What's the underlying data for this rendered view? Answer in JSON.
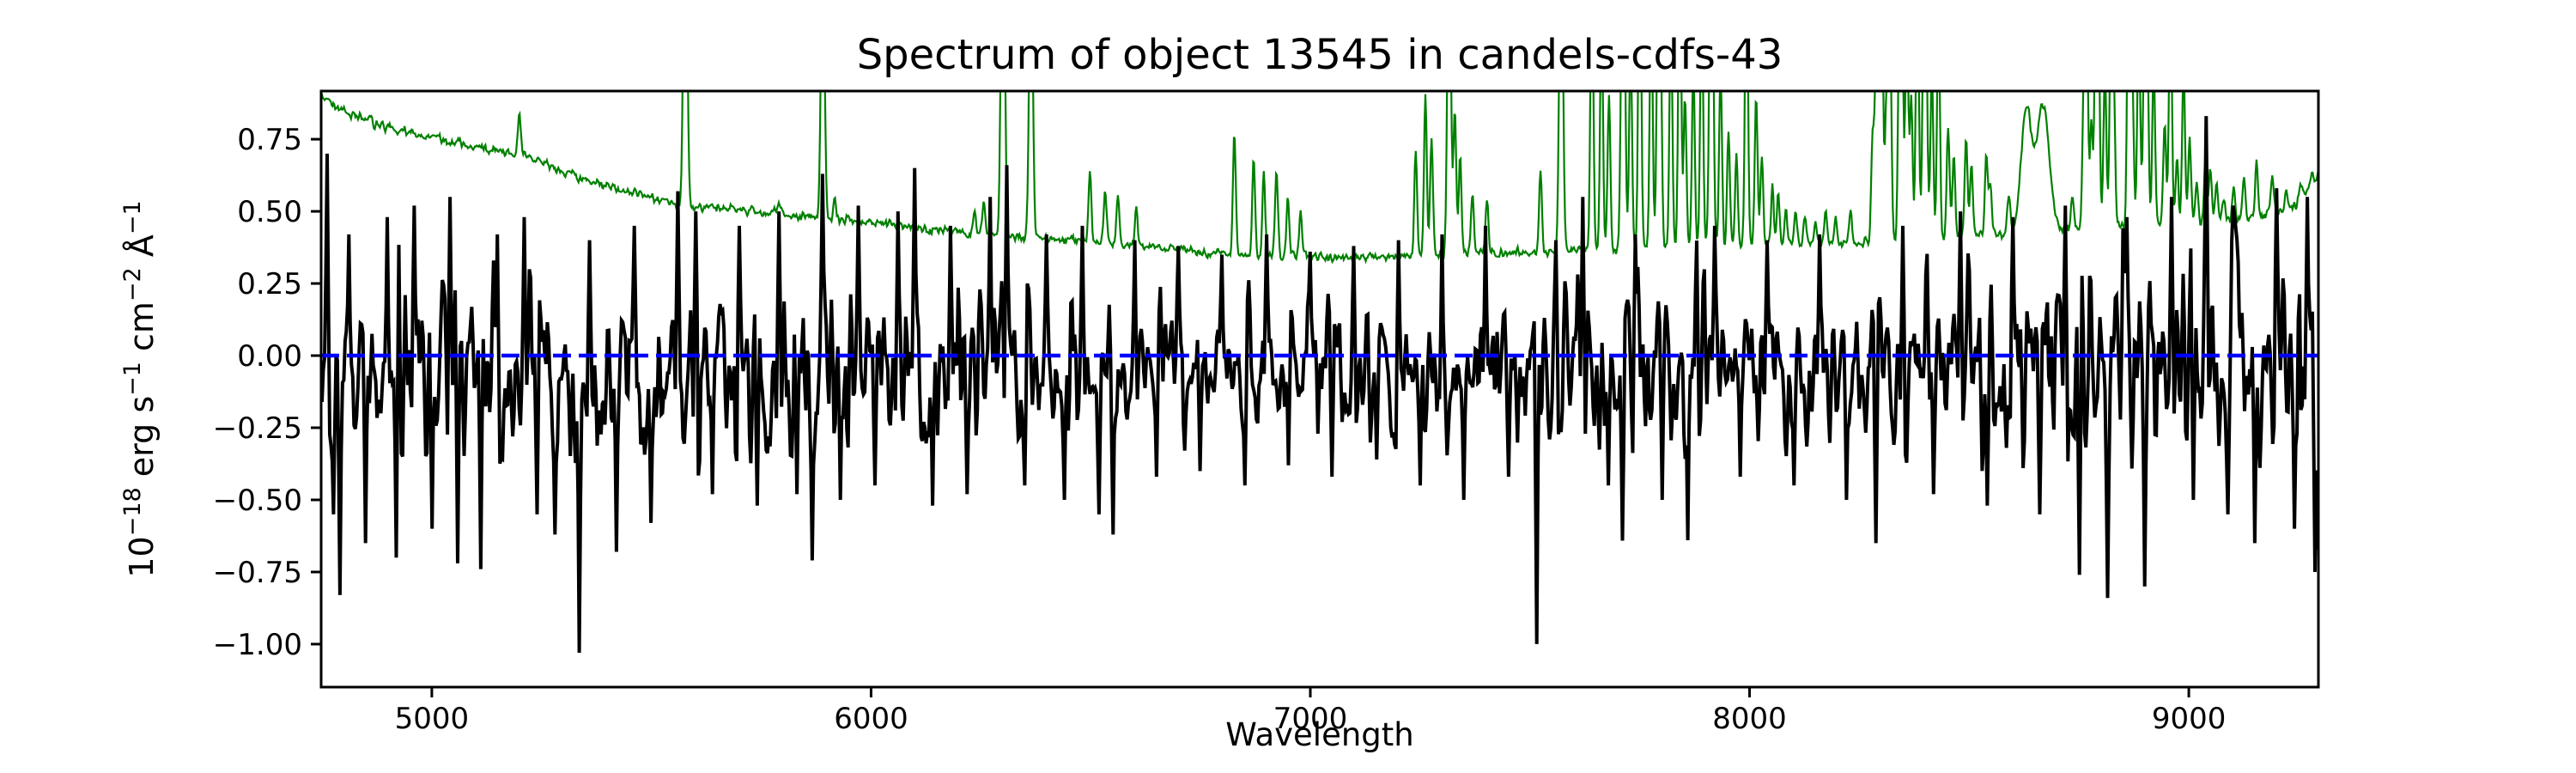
{
  "figure": {
    "background": "#ffffff",
    "title": "Spectrum of object 13545 in candels-cdfs-43",
    "xlabel": "Wavelength",
    "ylabel_parts": [
      {
        "t": "10"
      },
      {
        "t": "−18",
        "sup": true
      },
      {
        "t": " erg s"
      },
      {
        "t": "−1",
        "sup": true
      },
      {
        "t": " cm"
      },
      {
        "t": "−2",
        "sup": true
      },
      {
        "t": " Å"
      },
      {
        "t": "−1",
        "sup": true
      }
    ]
  },
  "chart_data": {
    "type": "line",
    "title": "Spectrum of object 13545 in candels-cdfs-43",
    "xlabel": "Wavelength",
    "ylabel": "10^-18 erg s^-1 cm^-2 A^-1",
    "xlim": [
      4748,
      9295
    ],
    "ylim": [
      -1.149,
      0.917
    ],
    "grid": false,
    "legend": "none",
    "xticks": {
      "values": [
        5000,
        6000,
        7000,
        8000,
        9000
      ],
      "labels": [
        "5000",
        "6000",
        "7000",
        "8000",
        "9000"
      ]
    },
    "yticks": {
      "values": [
        0.75,
        0.5,
        0.25,
        0.0,
        -0.25,
        -0.5,
        -0.75,
        -1.0
      ],
      "labels": [
        "0.75",
        "0.50",
        "0.25",
        "0.00",
        "−0.25",
        "−0.50",
        "−0.75",
        "−1.00"
      ]
    },
    "colors": {
      "flux": "#000000",
      "sky": "#008000",
      "zero_line": "#0000ff",
      "axis": "#000000"
    },
    "zero_line": {
      "y": 0.0,
      "style": "dashed",
      "color": "#0000ff"
    },
    "flux_series": {
      "name": "object flux (noisy, mean ~0)",
      "color": "#000000",
      "n": 1560,
      "seed": 1337,
      "sigma_points": [
        [
          4748,
          0.23
        ],
        [
          5200,
          0.22
        ],
        [
          5800,
          0.2
        ],
        [
          6300,
          0.19
        ],
        [
          6800,
          0.16
        ],
        [
          7200,
          0.16
        ],
        [
          7600,
          0.18
        ],
        [
          8000,
          0.19
        ],
        [
          8400,
          0.2
        ],
        [
          8700,
          0.24
        ],
        [
          9000,
          0.26
        ],
        [
          9295,
          0.29
        ]
      ],
      "features": [
        [
          4762,
          0.7
        ],
        [
          4775,
          -0.55
        ],
        [
          4790,
          -0.83
        ],
        [
          4810,
          0.42
        ],
        [
          4850,
          -0.65
        ],
        [
          4900,
          0.48
        ],
        [
          4920,
          -0.7
        ],
        [
          4960,
          0.52
        ],
        [
          5000,
          -0.6
        ],
        [
          5040,
          0.55
        ],
        [
          5060,
          -0.72
        ],
        [
          5112,
          -0.74
        ],
        [
          5150,
          0.42
        ],
        [
          5210,
          0.48
        ],
        [
          5240,
          -0.55
        ],
        [
          5280,
          -0.62
        ],
        [
          5335,
          -1.03
        ],
        [
          5360,
          0.4
        ],
        [
          5420,
          -0.68
        ],
        [
          5460,
          0.45
        ],
        [
          5500,
          -0.58
        ],
        [
          5560,
          0.57
        ],
        [
          5600,
          0.5
        ],
        [
          5640,
          -0.48
        ],
        [
          5700,
          0.45
        ],
        [
          5740,
          -0.52
        ],
        [
          5790,
          0.5
        ],
        [
          5830,
          -0.48
        ],
        [
          5866,
          -0.71
        ],
        [
          5890,
          0.63
        ],
        [
          5930,
          -0.5
        ],
        [
          5970,
          0.52
        ],
        [
          6010,
          -0.45
        ],
        [
          6060,
          0.5
        ],
        [
          6100,
          0.65
        ],
        [
          6140,
          -0.52
        ],
        [
          6180,
          0.45
        ],
        [
          6220,
          -0.48
        ],
        [
          6270,
          0.55
        ],
        [
          6310,
          0.66
        ],
        [
          6350,
          -0.45
        ],
        [
          6400,
          0.42
        ],
        [
          6440,
          -0.5
        ],
        [
          6480,
          0.45
        ],
        [
          6520,
          -0.55
        ],
        [
          6550,
          -0.62
        ],
        [
          6600,
          0.4
        ],
        [
          6650,
          -0.42
        ],
        [
          6700,
          0.38
        ],
        [
          6750,
          -0.4
        ],
        [
          6800,
          0.35
        ],
        [
          6850,
          -0.45
        ],
        [
          6900,
          0.42
        ],
        [
          6950,
          -0.38
        ],
        [
          7000,
          0.36
        ],
        [
          7050,
          -0.42
        ],
        [
          7100,
          0.38
        ],
        [
          7150,
          -0.36
        ],
        [
          7200,
          0.4
        ],
        [
          7250,
          -0.45
        ],
        [
          7300,
          0.42
        ],
        [
          7350,
          -0.5
        ],
        [
          7400,
          0.45
        ],
        [
          7450,
          -0.42
        ],
        [
          7515,
          -1.0
        ],
        [
          7560,
          0.4
        ],
        [
          7620,
          0.55
        ],
        [
          7680,
          -0.45
        ],
        [
          7740,
          0.42
        ],
        [
          7800,
          -0.5
        ],
        [
          7860,
          -0.64
        ],
        [
          7920,
          0.45
        ],
        [
          7980,
          -0.42
        ],
        [
          8040,
          0.4
        ],
        [
          8100,
          -0.45
        ],
        [
          8160,
          0.42
        ],
        [
          8220,
          -0.5
        ],
        [
          8287,
          -0.65
        ],
        [
          8350,
          0.45
        ],
        [
          8420,
          -0.48
        ],
        [
          8480,
          0.5
        ],
        [
          8540,
          -0.52
        ],
        [
          8600,
          0.48
        ],
        [
          8660,
          -0.55
        ],
        [
          8720,
          0.52
        ],
        [
          8750,
          -0.76
        ],
        [
          8815,
          -0.84
        ],
        [
          8860,
          0.48
        ],
        [
          8900,
          -0.8
        ],
        [
          8960,
          0.55
        ],
        [
          9010,
          -0.5
        ],
        [
          9040,
          0.83
        ],
        [
          9090,
          -0.55
        ],
        [
          9150,
          -0.65
        ],
        [
          9200,
          0.58
        ],
        [
          9240,
          -0.6
        ],
        [
          9270,
          0.55
        ],
        [
          9288,
          -0.75
        ]
      ]
    },
    "sky_series": {
      "name": "noise / sky spectrum",
      "color": "#008000",
      "step": 2,
      "seed": 77,
      "wiggle_sigma": 0.012,
      "continuum": [
        [
          4748,
          0.91
        ],
        [
          4800,
          0.845
        ],
        [
          4900,
          0.79
        ],
        [
          5000,
          0.755
        ],
        [
          5100,
          0.72
        ],
        [
          5200,
          0.7
        ],
        [
          5300,
          0.635
        ],
        [
          5400,
          0.59
        ],
        [
          5500,
          0.545
        ],
        [
          5577,
          0.52
        ],
        [
          5650,
          0.51
        ],
        [
          5750,
          0.5
        ],
        [
          5850,
          0.48
        ],
        [
          5950,
          0.47
        ],
        [
          6050,
          0.45
        ],
        [
          6150,
          0.435
        ],
        [
          6250,
          0.42
        ],
        [
          6350,
          0.41
        ],
        [
          6450,
          0.4
        ],
        [
          6550,
          0.39
        ],
        [
          6650,
          0.375
        ],
        [
          6750,
          0.36
        ],
        [
          6850,
          0.35
        ],
        [
          6950,
          0.345
        ],
        [
          7050,
          0.34
        ],
        [
          7150,
          0.34
        ],
        [
          7250,
          0.345
        ],
        [
          7350,
          0.35
        ],
        [
          7450,
          0.355
        ],
        [
          7550,
          0.36
        ],
        [
          7650,
          0.365
        ],
        [
          7750,
          0.37
        ],
        [
          7850,
          0.375
        ],
        [
          7950,
          0.375
        ],
        [
          8050,
          0.38
        ],
        [
          8150,
          0.385
        ],
        [
          8250,
          0.39
        ],
        [
          8350,
          0.4
        ],
        [
          8450,
          0.41
        ],
        [
          8550,
          0.42
        ],
        [
          8650,
          0.43
        ],
        [
          8750,
          0.44
        ],
        [
          8850,
          0.45
        ],
        [
          8950,
          0.46
        ],
        [
          9050,
          0.465
        ],
        [
          9150,
          0.48
        ],
        [
          9250,
          0.52
        ],
        [
          9295,
          0.62
        ]
      ],
      "sky_lines": [
        [
          5199,
          0.84
        ],
        [
          5461,
          0.55
        ],
        [
          5577,
          1.9,
          4
        ],
        [
          5683,
          0.5
        ],
        [
          5790,
          0.52
        ],
        [
          5890,
          1.5,
          4
        ],
        [
          5917,
          0.55
        ],
        [
          6235,
          0.5
        ],
        [
          6257,
          0.52
        ],
        [
          6300,
          1.9,
          4
        ],
        [
          6364,
          1.5,
          4
        ],
        [
          6498,
          0.64
        ],
        [
          6533,
          0.57
        ],
        [
          6562,
          0.55
        ],
        [
          6604,
          0.5
        ],
        [
          6827,
          0.78
        ],
        [
          6871,
          0.68
        ],
        [
          6894,
          0.64
        ],
        [
          6923,
          0.65
        ],
        [
          6949,
          0.56
        ],
        [
          6978,
          0.5
        ],
        [
          7240,
          0.73
        ],
        [
          7262,
          0.9
        ],
        [
          7276,
          0.76
        ],
        [
          7316,
          1.5,
          4
        ],
        [
          7329,
          0.85
        ],
        [
          7341,
          0.68
        ],
        [
          7369,
          0.56
        ],
        [
          7402,
          0.55
        ],
        [
          7524,
          0.62
        ],
        [
          7571,
          1.6,
          4
        ],
        [
          7641,
          1.4
        ],
        [
          7663,
          1.2
        ],
        [
          7680,
          0.9
        ],
        [
          7712,
          1.8,
          4
        ],
        [
          7729,
          1.1
        ],
        [
          7750,
          1.6
        ],
        [
          7776,
          1.3
        ],
        [
          7794,
          1.9,
          4
        ],
        [
          7821,
          1.2
        ],
        [
          7841,
          1.5
        ],
        [
          7853,
          0.9
        ],
        [
          7872,
          1.0
        ],
        [
          7891,
          1.3
        ],
        [
          7913,
          1.8,
          4
        ],
        [
          7934,
          1.0
        ],
        [
          7952,
          0.8
        ],
        [
          7970,
          0.7
        ],
        [
          7993,
          1.5
        ],
        [
          8015,
          0.9
        ],
        [
          8028,
          0.7
        ],
        [
          8052,
          0.6
        ],
        [
          8065,
          0.55
        ],
        [
          8083,
          0.5
        ],
        [
          8105,
          0.5
        ],
        [
          8126,
          0.48
        ],
        [
          8150,
          0.46
        ],
        [
          8173,
          0.5
        ],
        [
          8196,
          0.48
        ],
        [
          8230,
          0.5
        ],
        [
          8280,
          0.75
        ],
        [
          8288,
          1.0
        ],
        [
          8299,
          1.6,
          4
        ],
        [
          8312,
          0.9
        ],
        [
          8320,
          1.1
        ],
        [
          8344,
          1.9,
          4
        ],
        [
          8358,
          1.2
        ],
        [
          8368,
          0.9
        ],
        [
          8382,
          1.4
        ],
        [
          8399,
          1.7,
          4
        ],
        [
          8415,
          1.0
        ],
        [
          8430,
          1.2
        ],
        [
          8452,
          0.8
        ],
        [
          8465,
          0.7
        ],
        [
          8493,
          0.75
        ],
        [
          8505,
          0.65
        ],
        [
          8539,
          0.7
        ],
        [
          8548,
          0.6
        ],
        [
          8590,
          0.55
        ],
        [
          8630,
          0.85,
          12
        ],
        [
          8668,
          0.87,
          14
        ],
        [
          8735,
          0.55
        ],
        [
          8761,
          0.9
        ],
        [
          8767,
          1.3
        ],
        [
          8778,
          0.8
        ],
        [
          8791,
          1.9,
          4
        ],
        [
          8809,
          1.0
        ],
        [
          8823,
          1.2
        ],
        [
          8829,
          0.9
        ],
        [
          8863,
          1.5
        ],
        [
          8871,
          1.0
        ],
        [
          8886,
          1.2
        ],
        [
          8902,
          1.8,
          4
        ],
        [
          8920,
          1.0
        ],
        [
          8945,
          0.8
        ],
        [
          8958,
          1.3
        ],
        [
          8973,
          0.7
        ],
        [
          8988,
          1.0
        ],
        [
          9002,
          0.75
        ],
        [
          9018,
          0.6
        ],
        [
          9038,
          0.7
        ],
        [
          9049,
          0.65
        ],
        [
          9063,
          0.6
        ],
        [
          9080,
          0.55
        ],
        [
          9102,
          0.58
        ],
        [
          9125,
          0.62
        ],
        [
          9154,
          0.68
        ],
        [
          9190,
          0.62
        ],
        [
          9222,
          0.58
        ],
        [
          9255,
          0.6
        ],
        [
          9280,
          0.63
        ]
      ]
    }
  }
}
